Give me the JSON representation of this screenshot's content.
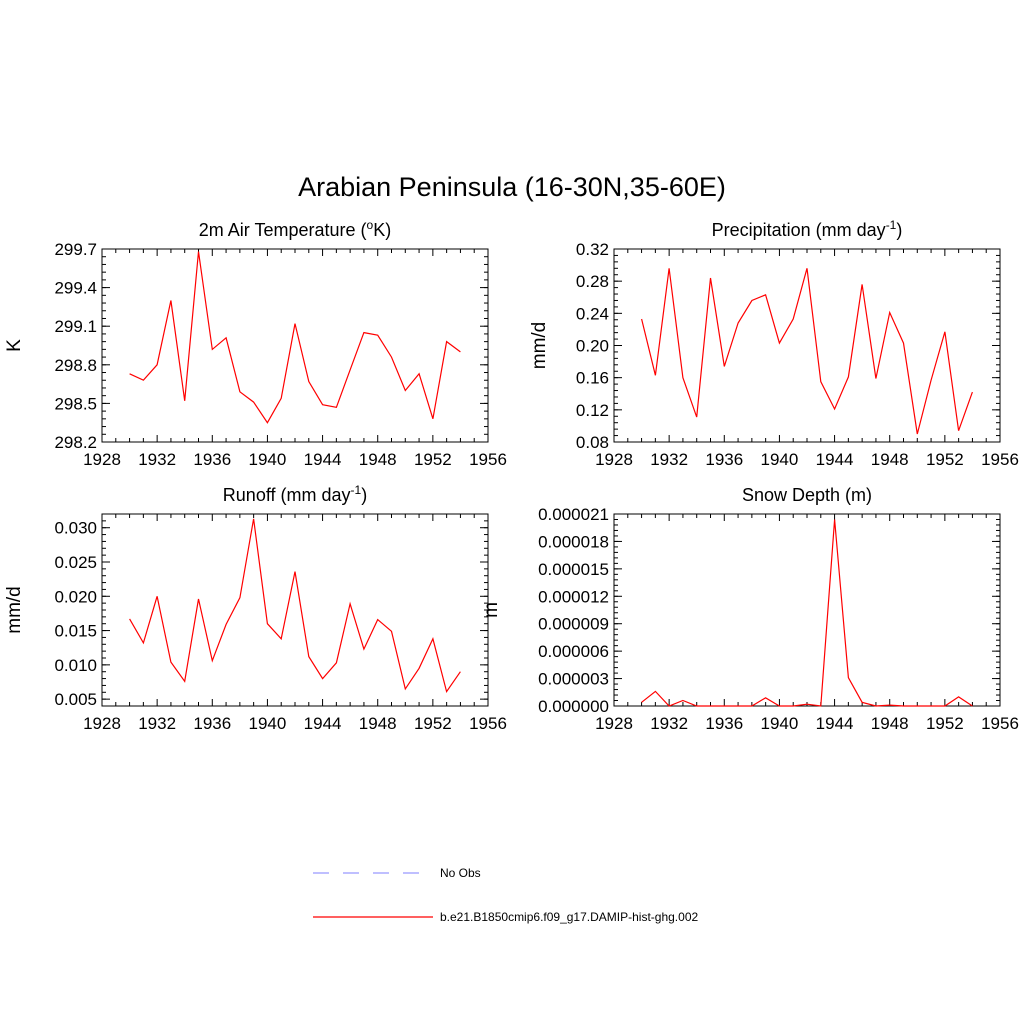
{
  "figure": {
    "title": "Arabian Peninsula (16-30N,35-60E)"
  },
  "colors": {
    "model_line": "#ff0000",
    "obs_line": "#9999ff",
    "axis": "#000000"
  },
  "legend": {
    "position": "bottom-center",
    "items": [
      {
        "label": "No Obs",
        "style": "dashed",
        "color": "#9999ff"
      },
      {
        "label": "b.e21.B1850cmip6.f09_g17.DAMIP-hist-ghg.002",
        "style": "solid",
        "color": "#ff0000"
      }
    ]
  },
  "chart_data": [
    {
      "type": "line",
      "title_parts": {
        "pre": "2m Air Temperature (",
        "sup": "o",
        "post": "K)"
      },
      "ylabel": "K",
      "xlim": [
        1928,
        1956
      ],
      "ylim": [
        298.2,
        299.7
      ],
      "xticks": [
        "1928",
        "1932",
        "1936",
        "1940",
        "1944",
        "1948",
        "1952",
        "1956"
      ],
      "yticks": [
        "298.2",
        "298.5",
        "298.8",
        "299.1",
        "299.4",
        "299.7"
      ],
      "series": [
        {
          "x": [
            1930,
            1931,
            1932,
            1933,
            1934,
            1935,
            1936,
            1937,
            1938,
            1939,
            1940,
            1941,
            1942,
            1943,
            1944,
            1945,
            1946,
            1947,
            1948,
            1949,
            1950,
            1951,
            1952,
            1953,
            1954
          ],
          "values": [
            298.73,
            298.68,
            298.8,
            299.3,
            298.52,
            299.68,
            298.92,
            299.01,
            298.59,
            298.51,
            298.35,
            298.54,
            299.12,
            298.67,
            298.49,
            298.47,
            298.76,
            299.05,
            299.03,
            298.86,
            298.6,
            298.73,
            298.38,
            298.98,
            298.9
          ]
        }
      ]
    },
    {
      "type": "line",
      "title_parts": {
        "pre": "Precipitation (mm day",
        "sup": "-1",
        "post": ")"
      },
      "ylabel": "mm/d",
      "xlim": [
        1928,
        1956
      ],
      "ylim": [
        0.08,
        0.32
      ],
      "xticks": [
        "1928",
        "1932",
        "1936",
        "1940",
        "1944",
        "1948",
        "1952",
        "1956"
      ],
      "yticks": [
        "0.08",
        "0.12",
        "0.16",
        "0.20",
        "0.24",
        "0.28",
        "0.32"
      ],
      "series": [
        {
          "x": [
            1930,
            1931,
            1932,
            1933,
            1934,
            1935,
            1936,
            1937,
            1938,
            1939,
            1940,
            1941,
            1942,
            1943,
            1944,
            1945,
            1946,
            1947,
            1948,
            1949,
            1950,
            1951,
            1952,
            1953,
            1954
          ],
          "values": [
            0.233,
            0.163,
            0.296,
            0.16,
            0.111,
            0.284,
            0.174,
            0.228,
            0.256,
            0.263,
            0.203,
            0.233,
            0.296,
            0.155,
            0.121,
            0.161,
            0.276,
            0.159,
            0.241,
            0.203,
            0.09,
            0.157,
            0.217,
            0.094,
            0.142
          ]
        }
      ]
    },
    {
      "type": "line",
      "title_parts": {
        "pre": "Runoff (mm day",
        "sup": "-1",
        "post": ")"
      },
      "ylabel": "mm/d",
      "xlim": [
        1928,
        1956
      ],
      "ylim": [
        0.004,
        0.032
      ],
      "xticks": [
        "1928",
        "1932",
        "1936",
        "1940",
        "1944",
        "1948",
        "1952",
        "1956"
      ],
      "yticks": [
        "0.005",
        "0.010",
        "0.015",
        "0.020",
        "0.025",
        "0.030"
      ],
      "series": [
        {
          "x": [
            1930,
            1931,
            1932,
            1933,
            1934,
            1935,
            1936,
            1937,
            1938,
            1939,
            1940,
            1941,
            1942,
            1943,
            1944,
            1945,
            1946,
            1947,
            1948,
            1949,
            1950,
            1951,
            1952,
            1953,
            1954
          ],
          "values": [
            0.0167,
            0.0132,
            0.02,
            0.0104,
            0.0076,
            0.0196,
            0.0106,
            0.0159,
            0.0198,
            0.0313,
            0.016,
            0.0138,
            0.0236,
            0.0112,
            0.008,
            0.0103,
            0.0189,
            0.0123,
            0.0166,
            0.0149,
            0.0065,
            0.0095,
            0.0138,
            0.0061,
            0.009
          ]
        }
      ]
    },
    {
      "type": "line",
      "title_parts": {
        "pre": "Snow Depth (m)",
        "sup": "",
        "post": ""
      },
      "ylabel": "m",
      "xlim": [
        1928,
        1956
      ],
      "ylim": [
        0,
        2.1e-05
      ],
      "xticks": [
        "1928",
        "1932",
        "1936",
        "1940",
        "1944",
        "1948",
        "1952",
        "1956"
      ],
      "yticks": [
        "0.000000",
        "0.000003",
        "0.000006",
        "0.000009",
        "0.000012",
        "0.000015",
        "0.000018",
        "0.000021"
      ],
      "series": [
        {
          "x": [
            1930,
            1931,
            1932,
            1933,
            1934,
            1935,
            1936,
            1937,
            1938,
            1939,
            1940,
            1941,
            1942,
            1943,
            1944,
            1945,
            1946,
            1947,
            1948,
            1949,
            1950,
            1951,
            1952,
            1953,
            1954
          ],
          "values": [
            4e-07,
            1.6e-06,
            0.0,
            6e-07,
            0.0,
            0.0,
            0.0,
            0.0,
            0.0,
            9e-07,
            0.0,
            0.0,
            2e-07,
            0.0,
            2.04e-05,
            3.1e-06,
            4e-07,
            0.0,
            1e-07,
            0.0,
            0.0,
            0.0,
            0.0,
            1e-06,
            0.0
          ]
        }
      ]
    }
  ]
}
